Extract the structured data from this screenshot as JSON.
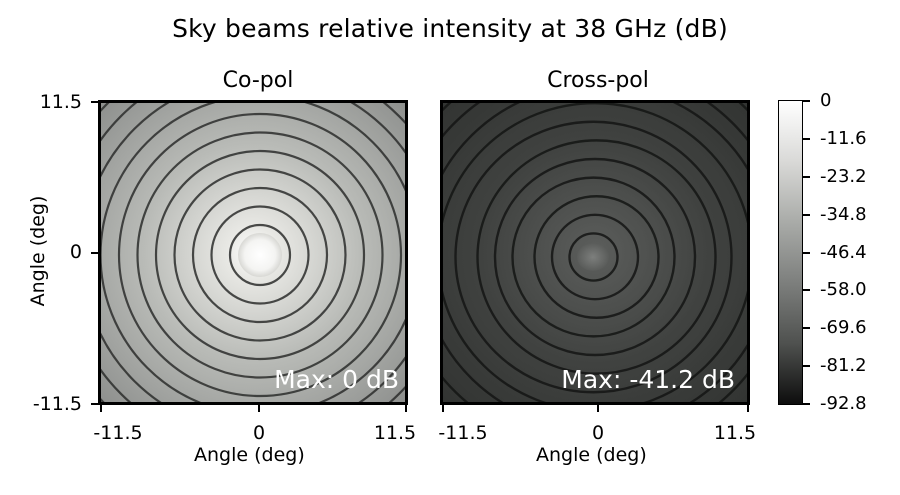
{
  "title": "Sky beams relative intensity at 38 GHz (dB)",
  "colors": {
    "background": "#ffffff",
    "max_white": "#ffffff",
    "min_black": "#0d0d0d"
  },
  "chart_data": [
    {
      "type": "heatmap",
      "title": "Co-pol",
      "xlabel": "Angle (deg)",
      "ylabel": "Angle (deg)",
      "xlim": [
        -11.5,
        11.5
      ],
      "ylim": [
        -11.5,
        11.5
      ],
      "xticks": [
        "-11.5",
        "0",
        "11.5"
      ],
      "yticks": [
        "11.5",
        "0",
        "-11.5"
      ],
      "annotation": "Max: 0 dB",
      "max_db": 0,
      "colormap": "gray",
      "pattern": "concentric rings centered at (0,0)"
    },
    {
      "type": "heatmap",
      "title": "Cross-pol",
      "xlabel": "Angle (deg)",
      "ylabel": "",
      "xlim": [
        -11.5,
        11.5
      ],
      "ylim": [
        -11.5,
        11.5
      ],
      "xticks": [
        "-11.5",
        "0",
        "11.5"
      ],
      "yticks": [],
      "annotation": "Max: -41.2 dB",
      "max_db": -41.2,
      "colormap": "gray",
      "pattern": "off-center rings, dark overall"
    }
  ],
  "colorbar": {
    "ticks": [
      "0",
      "-11.6",
      "-23.2",
      "-34.8",
      "-46.4",
      "-58.0",
      "-69.6",
      "-81.2",
      "-92.8"
    ],
    "range": [
      -92.8,
      0
    ]
  }
}
